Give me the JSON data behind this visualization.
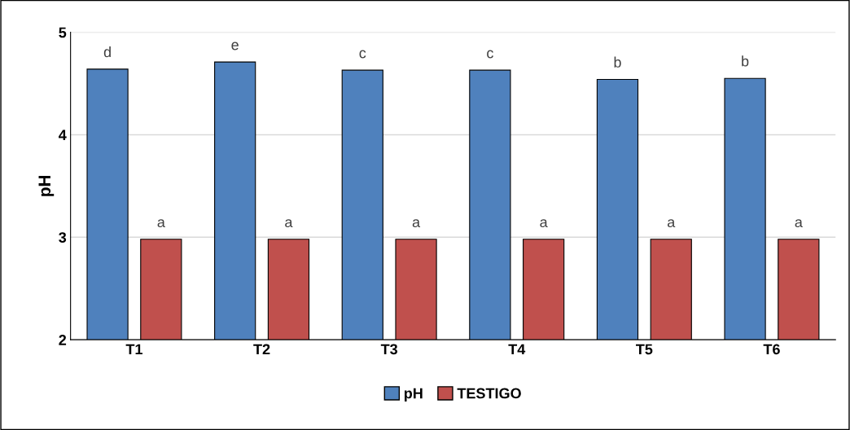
{
  "chart_data": {
    "type": "bar",
    "ylabel": "pH",
    "categories": [
      "T1",
      "T2",
      "T3",
      "T4",
      "T5",
      "T6"
    ],
    "series": [
      {
        "name": "pH",
        "color": "#4f81bd",
        "values": [
          4.64,
          4.71,
          4.63,
          4.63,
          4.54,
          4.55
        ],
        "value_labels": [
          "d",
          "e",
          "c",
          "c",
          "b",
          "b"
        ]
      },
      {
        "name": "TESTIGO",
        "color": "#c0504d",
        "values": [
          2.98,
          2.98,
          2.98,
          2.98,
          2.98,
          2.98
        ],
        "value_labels": [
          "a",
          "a",
          "a",
          "a",
          "a",
          "a"
        ]
      }
    ],
    "ylim": [
      2,
      5
    ],
    "yticks": [
      2,
      3,
      4,
      5
    ],
    "grid": "y",
    "legend": "bottom"
  }
}
